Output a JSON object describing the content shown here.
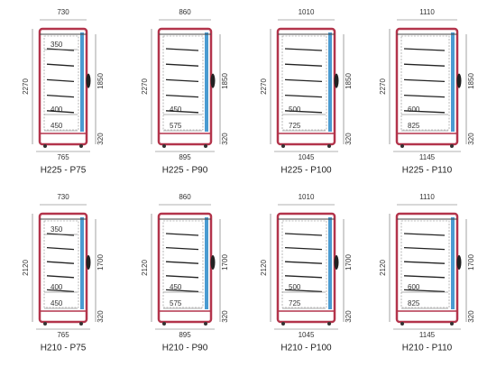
{
  "units": [
    {
      "label": "H225 - P75",
      "width_top": 730,
      "height": 2270,
      "inner_height": 1850,
      "base_height": 320,
      "width_bottom": 765,
      "shelf_labels": [
        350,
        400,
        450
      ]
    },
    {
      "label": "H225 - P90",
      "width_top": 860,
      "height": 2270,
      "inner_height": 1850,
      "base_height": 320,
      "width_bottom": 895,
      "shelf_labels": [
        450,
        575
      ]
    },
    {
      "label": "H225 - P100",
      "width_top": 1010,
      "height": 2270,
      "inner_height": 1850,
      "base_height": 320,
      "width_bottom": 1045,
      "shelf_labels": [
        500,
        725
      ]
    },
    {
      "label": "H225 - P110",
      "width_top": 1110,
      "height": 2270,
      "inner_height": 1850,
      "base_height": 320,
      "width_bottom": 1145,
      "shelf_labels": [
        600,
        825
      ]
    },
    {
      "label": "H210 - P75",
      "width_top": 730,
      "height": 2120,
      "inner_height": 1700,
      "base_height": 320,
      "width_bottom": 765,
      "shelf_labels": [
        350,
        400,
        450
      ]
    },
    {
      "label": "H210 - P90",
      "width_top": 860,
      "height": 2120,
      "inner_height": 1700,
      "base_height": 320,
      "width_bottom": 895,
      "shelf_labels": [
        450,
        575
      ]
    },
    {
      "label": "H210 - P100",
      "width_top": 1010,
      "height": 2120,
      "inner_height": 1700,
      "base_height": 320,
      "width_bottom": 1045,
      "shelf_labels": [
        500,
        725
      ]
    },
    {
      "label": "H210 - P110",
      "width_top": 1110,
      "height": 2120,
      "inner_height": 1700,
      "base_height": 320,
      "width_bottom": 1145,
      "shelf_labels": [
        600,
        825
      ]
    }
  ]
}
